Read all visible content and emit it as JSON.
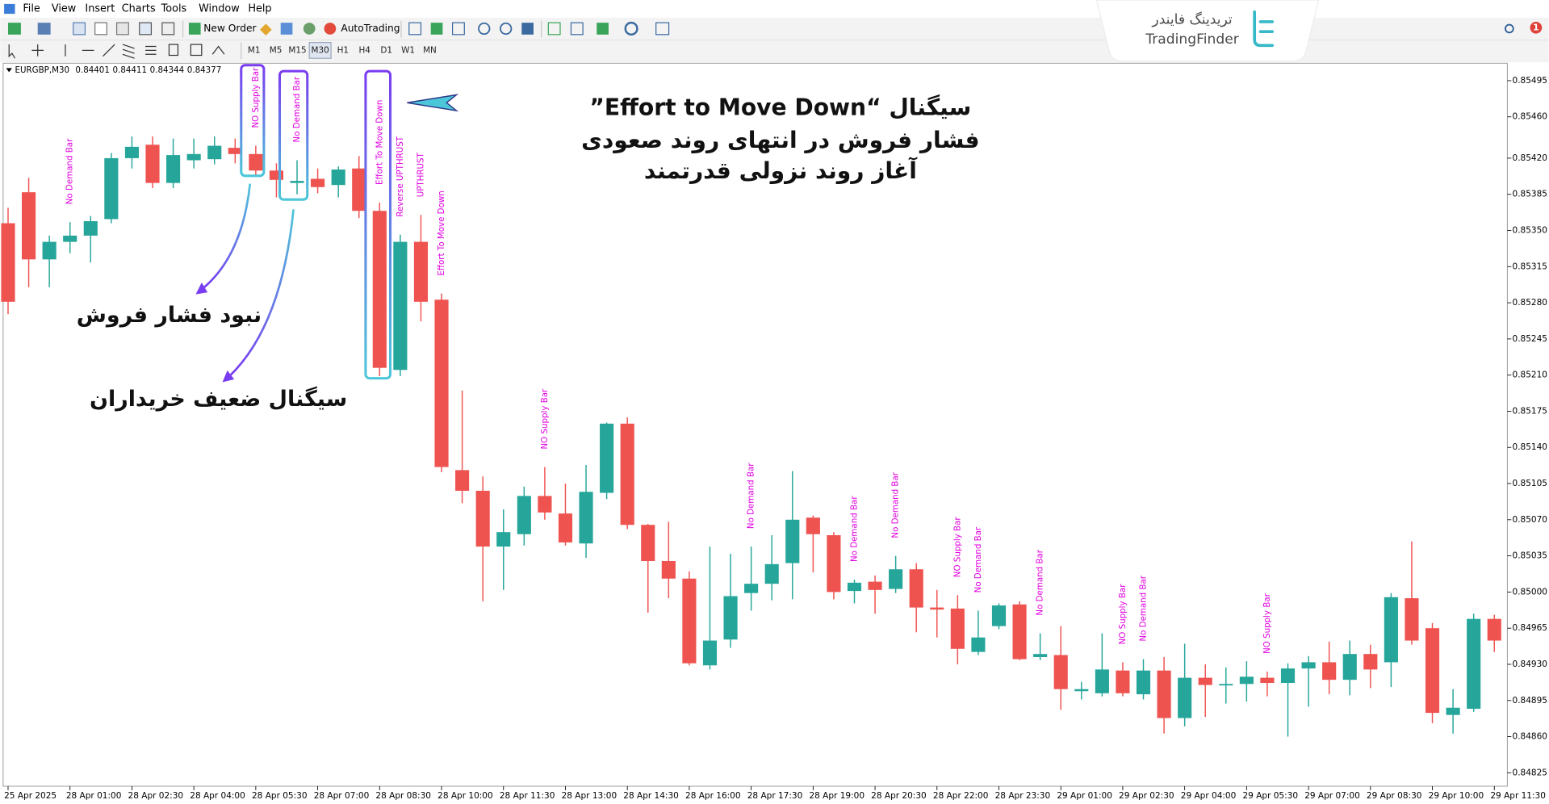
{
  "menu": [
    "File",
    "View",
    "Insert",
    "Charts",
    "Tools",
    "Window",
    "Help"
  ],
  "toolbar": {
    "new_order": "New Order",
    "auto_trading": "AutoTrading",
    "timeframes": [
      "M1",
      "M5",
      "M15",
      "M30",
      "H1",
      "H4",
      "D1",
      "W1",
      "MN"
    ]
  },
  "logo": {
    "persian": "تریدینگ فایندر",
    "latin": "TradingFinder"
  },
  "notification_count": "1",
  "chart_header": {
    "symbol": "EURGBP,M30",
    "prices": [
      "0.84401",
      "0.84411",
      "0.84344",
      "0.84377"
    ]
  },
  "chart_data": {
    "type": "candlestick",
    "up_color": "#26a69a",
    "down_color": "#ef5350",
    "signal_color": "#e000e0",
    "categories": [
      "25 Apr 2025",
      null,
      null,
      "28 Apr 01:00",
      null,
      null,
      "28 Apr 02:30",
      null,
      null,
      "28 Apr 04:00",
      null,
      null,
      "28 Apr 05:30",
      null,
      null,
      "28 Apr 07:00",
      null,
      null,
      "28 Apr 08:30",
      null,
      null,
      "28 Apr 10:00",
      null,
      null,
      "28 Apr 11:30",
      null,
      null,
      "28 Apr 13:00",
      null,
      null,
      "28 Apr 14:30",
      null,
      null,
      "28 Apr 16:00",
      null,
      null,
      "28 Apr 17:30",
      null,
      null,
      "28 Apr 19:00",
      null,
      null,
      "28 Apr 20:30",
      null,
      null,
      "28 Apr 22:00",
      null,
      null,
      "28 Apr 23:30",
      null,
      null,
      "29 Apr 01:00",
      null,
      null,
      "29 Apr 02:30",
      null,
      null,
      "29 Apr 04:00",
      null,
      null,
      "29 Apr 05:30",
      null,
      null,
      "29 Apr 07:00",
      null,
      null,
      "29 Apr 08:30",
      null,
      null,
      "29 Apr 10:00",
      null,
      null,
      "29 Apr 11:30"
    ],
    "open": [
      0.85357,
      0.85387,
      0.85322,
      0.85339,
      0.85345,
      0.85361,
      0.8542,
      0.85433,
      0.85396,
      0.85418,
      0.85419,
      0.8543,
      0.85424,
      0.85408,
      0.85396,
      0.854,
      0.85394,
      0.8541,
      0.85369,
      0.85215,
      0.85339,
      0.85283,
      0.85118,
      0.85098,
      0.85044,
      0.85056,
      0.85093,
      0.85076,
      0.85047,
      0.85096,
      0.85163,
      0.85065,
      0.8503,
      0.85013,
      0.84929,
      0.84954,
      0.84999,
      0.85008,
      0.85028,
      0.85072,
      0.85055,
      0.85001,
      0.8501,
      0.85003,
      0.85022,
      0.84985,
      0.84984,
      0.84942,
      0.84967,
      0.84988,
      0.84937,
      0.84939,
      0.84904,
      0.84902,
      0.84924,
      0.84901,
      0.84924,
      0.84878,
      0.84917,
      0.8491,
      0.84911,
      0.84917,
      0.84912,
      0.84926,
      0.84932,
      0.84915,
      0.8494,
      0.84932,
      0.84994,
      0.84965,
      0.84881,
      0.84887,
      0.84974
    ],
    "high": [
      0.85372,
      0.85401,
      0.85345,
      0.85358,
      0.85364,
      0.85425,
      0.85441,
      0.85441,
      0.85439,
      0.85439,
      0.85441,
      0.85439,
      0.85432,
      0.85415,
      0.85418,
      0.8541,
      0.85412,
      0.85422,
      0.85377,
      0.85346,
      0.85365,
      0.85289,
      0.85195,
      0.85112,
      0.8508,
      0.85102,
      0.85121,
      0.85105,
      0.85123,
      0.85164,
      0.85169,
      0.85066,
      0.85068,
      0.8502,
      0.85044,
      0.85037,
      0.85044,
      0.85055,
      0.85117,
      0.85074,
      0.85058,
      0.85012,
      0.85016,
      0.85035,
      0.85028,
      0.85002,
      0.84997,
      0.84982,
      0.84989,
      0.84991,
      0.8496,
      0.84967,
      0.84913,
      0.8496,
      0.84932,
      0.84935,
      0.84937,
      0.8495,
      0.8493,
      0.84927,
      0.84933,
      0.84923,
      0.84931,
      0.84938,
      0.84952,
      0.84953,
      0.84949,
      0.84999,
      0.85049,
      0.8497,
      0.84906,
      0.84979,
      0.84978
    ],
    "low": [
      0.85269,
      0.85295,
      0.85295,
      0.85328,
      0.85319,
      0.85357,
      0.8541,
      0.85391,
      0.85391,
      0.8541,
      0.85414,
      0.85415,
      0.85403,
      0.85382,
      0.85385,
      0.85386,
      0.85382,
      0.85362,
      0.85209,
      0.85209,
      0.85262,
      0.85116,
      0.85086,
      0.84991,
      0.85002,
      0.85045,
      0.8507,
      0.85045,
      0.85033,
      0.8509,
      0.85061,
      0.8498,
      0.84994,
      0.84929,
      0.84925,
      0.84946,
      0.84982,
      0.84992,
      0.84993,
      0.85019,
      0.84993,
      0.84989,
      0.84979,
      0.84999,
      0.84961,
      0.84956,
      0.8493,
      0.84939,
      0.84964,
      0.84934,
      0.84934,
      0.84886,
      0.84896,
      0.84899,
      0.84899,
      0.84896,
      0.84863,
      0.8487,
      0.84879,
      0.84892,
      0.84894,
      0.84899,
      0.8486,
      0.84889,
      0.84901,
      0.849,
      0.84907,
      0.84908,
      0.84949,
      0.84873,
      0.84863,
      0.84884,
      0.84942
    ],
    "close": [
      0.85281,
      0.85322,
      0.85339,
      0.85345,
      0.85359,
      0.8542,
      0.85431,
      0.85396,
      0.85423,
      0.85424,
      0.85432,
      0.85424,
      0.85408,
      0.85399,
      0.85398,
      0.85392,
      0.85409,
      0.85369,
      0.85217,
      0.85339,
      0.85281,
      0.85121,
      0.85098,
      0.85044,
      0.85058,
      0.85093,
      0.85077,
      0.85048,
      0.85097,
      0.85163,
      0.85065,
      0.8503,
      0.85013,
      0.84931,
      0.84953,
      0.84996,
      0.85008,
      0.85027,
      0.8507,
      0.85056,
      0.85,
      0.85009,
      0.85002,
      0.85022,
      0.84985,
      0.84983,
      0.84945,
      0.84956,
      0.84987,
      0.84935,
      0.8494,
      0.84906,
      0.84906,
      0.84925,
      0.84902,
      0.84924,
      0.84878,
      0.84917,
      0.8491,
      0.84911,
      0.84918,
      0.84912,
      0.84926,
      0.84932,
      0.84915,
      0.8494,
      0.84925,
      0.84995,
      0.84953,
      0.84883,
      0.84888,
      0.84974,
      0.84953
    ],
    "signals": [
      null,
      null,
      null,
      "No Demand Bar",
      null,
      null,
      null,
      null,
      null,
      null,
      null,
      null,
      "NO Supply Bar",
      null,
      "No Demand Bar",
      null,
      null,
      null,
      "Effort To Move Down",
      "Reverse UPTHRUST",
      "UPTHRUST",
      "Effort To Move Down",
      null,
      null,
      null,
      null,
      "NO Supply Bar",
      null,
      null,
      null,
      null,
      null,
      null,
      null,
      null,
      null,
      "No Demand Bar",
      null,
      null,
      null,
      null,
      "No Demand Bar",
      null,
      "No Demand Bar",
      null,
      null,
      "NO Supply Bar",
      "No Demand Bar",
      null,
      null,
      "No Demand Bar",
      null,
      null,
      null,
      "NO Supply Bar",
      "No Demand Bar",
      null,
      null,
      null,
      null,
      null,
      "NO Supply Bar",
      null,
      null,
      null,
      null,
      null,
      null,
      null,
      null,
      null,
      null,
      null
    ],
    "ylim": [
      0.84812,
      0.8551
    ],
    "yticks": [
      0.85495,
      {
        "value": 0.8546,
        "label": "0.85460"
      },
      {
        "value": 0.8542,
        "label": "0.85420"
      },
      0.85385,
      {
        "value": 0.8535,
        "label": "0.85350"
      },
      0.85315,
      {
        "value": 0.8528,
        "label": "0.85280"
      },
      0.85245,
      {
        "value": 0.8521,
        "label": "0.85210"
      },
      0.85175,
      {
        "value": 0.8514,
        "label": "0.85140"
      },
      0.85105,
      {
        "value": 0.8507,
        "label": "0.85070"
      },
      0.85035,
      {
        "value": 0.85,
        "label": "0.85000"
      },
      0.84965,
      {
        "value": 0.8493,
        "label": "0.84930"
      },
      0.84895,
      {
        "value": 0.8486,
        "label": "0.84860"
      },
      0.84825
    ],
    "grid": false
  },
  "annotations": {
    "effort_signal": [
      "سیگنال “Effort to Move Down”",
      "فشار فروش در انتهای روند صعودی",
      "آغاز روند نزولی قدرتمند"
    ],
    "no_selling_pressure": "نبود فشار فروش",
    "weak_buyers": "سیگنال ضعیف خریداران"
  }
}
